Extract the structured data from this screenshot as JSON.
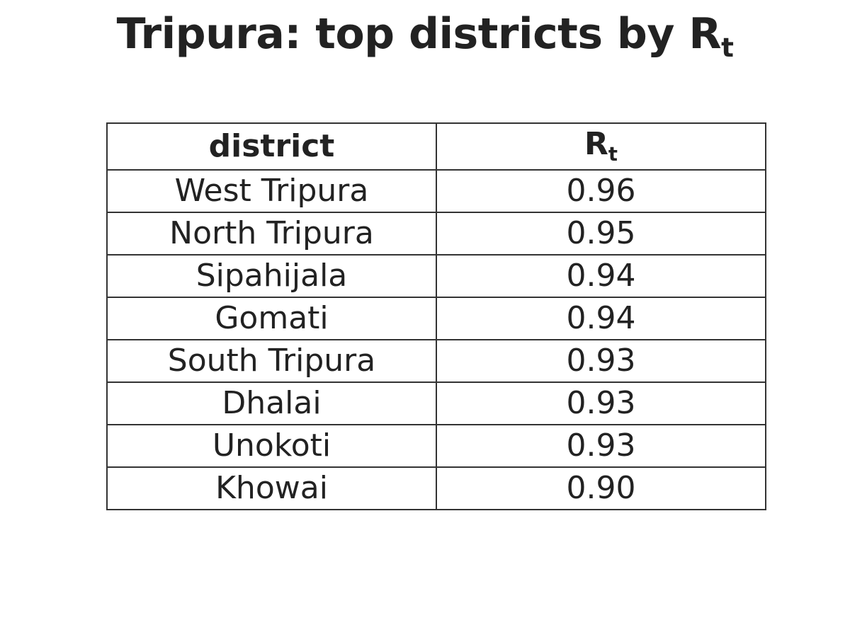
{
  "title": {
    "text": "Tripura: top districts by R",
    "subscript": "t"
  },
  "chart_data": {
    "type": "table",
    "columns": [
      {
        "label": "district",
        "subscript": ""
      },
      {
        "label": "R",
        "subscript": "t"
      }
    ],
    "rows": [
      {
        "district": "West Tripura",
        "rt": "0.96"
      },
      {
        "district": "North Tripura",
        "rt": "0.95"
      },
      {
        "district": "Sipahijala",
        "rt": "0.94"
      },
      {
        "district": "Gomati",
        "rt": "0.94"
      },
      {
        "district": "South Tripura",
        "rt": "0.93"
      },
      {
        "district": "Dhalai",
        "rt": "0.93"
      },
      {
        "district": "Unokoti",
        "rt": "0.93"
      },
      {
        "district": "Khowai",
        "rt": "0.90"
      }
    ]
  },
  "colors": {
    "text": "#222222",
    "border": "#333333",
    "background": "#ffffff"
  }
}
